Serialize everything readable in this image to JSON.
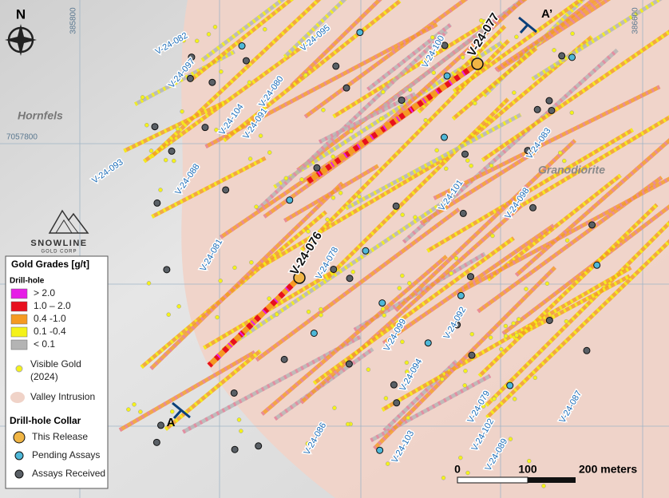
{
  "north": "N",
  "grid": {
    "eastings": [
      "385800",
      "386600"
    ],
    "northings": [
      "7057800"
    ]
  },
  "rock_units": [
    "Hornfels",
    "Granodiorite"
  ],
  "section": {
    "start": "A",
    "end": "A’"
  },
  "holes": [
    "V-24-082",
    "V-24-097",
    "V-24-095",
    "V-24-100",
    "V-24-080",
    "V-24-104",
    "V-24-091",
    "V-24-093",
    "V-24-088",
    "V-24-083",
    "V-24-101",
    "V-24-098",
    "V-24-081",
    "V-24-078",
    "V-24-099",
    "V-24-092",
    "V-24-094",
    "V-24-079",
    "V-24-102",
    "V-24-087",
    "V-24-086",
    "V-24-103",
    "V-24-089"
  ],
  "highlight_holes": [
    "V-24-077",
    "V-24-076"
  ],
  "logo": {
    "name": "SNOWLINE",
    "sub": "GOLD CORP"
  },
  "legend": {
    "title": "Gold Grades [g/t]",
    "drill_hole": "Drill-hole",
    "grades": [
      {
        "label": "> 2.0",
        "color": "#e61ee6"
      },
      {
        "label": "1.0 – 2.0",
        "color": "#e8101e"
      },
      {
        "label": "0.4 -1.0",
        "color": "#f59a23"
      },
      {
        "label": "0.1 -0.4",
        "color": "#f4f21a"
      },
      {
        "label": "< 0.1",
        "color": "#b4b4b4"
      }
    ],
    "visible_gold": [
      "Visible Gold",
      "(2024)"
    ],
    "intrusion": "Valley Intrusion",
    "collar_title": "Drill-hole Collar",
    "collars": [
      {
        "label": "This Release",
        "color": "#f0b545"
      },
      {
        "label": "Pending Assays",
        "color": "#4fb8d8"
      },
      {
        "label": "Assays Received",
        "color": "#5a6066"
      }
    ]
  },
  "scale": {
    "ticks": [
      "0",
      "100"
    ],
    "end": "200 meters"
  }
}
